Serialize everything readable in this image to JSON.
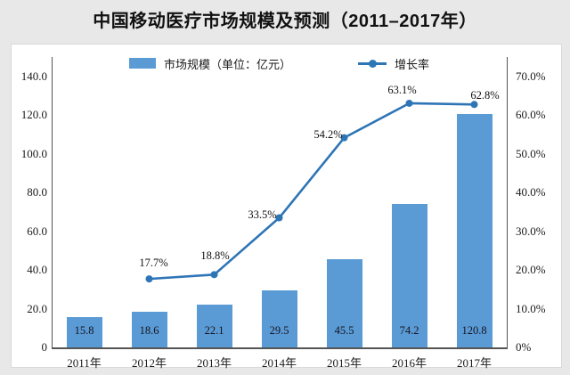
{
  "title": "中国移动医疗市场规模及预测（2011–2017年）",
  "legend": {
    "bar_label": "市场规模（单位：亿元）",
    "line_label": "增长率"
  },
  "colors": {
    "bar_fill": "#5b9bd5",
    "line_stroke": "#2e75b6",
    "marker_fill": "#2e75b6",
    "axis_line": "#555555",
    "background": "#e8e8e8",
    "panel": "#ffffff"
  },
  "chart_data": {
    "type": "combo-bar-line",
    "title": "中国移动医疗市场规模及预测（2011–2017年）",
    "categories": [
      "2011年",
      "2012年",
      "2013年",
      "2014年",
      "2015年",
      "2016年",
      "2017年"
    ],
    "series": [
      {
        "name": "市场规模（单位：亿元）",
        "type": "bar",
        "axis": "left",
        "values": [
          15.8,
          18.6,
          22.1,
          29.5,
          45.5,
          74.2,
          120.8
        ],
        "value_labels": [
          "15.8",
          "18.6",
          "22.1",
          "29.5",
          "45.5",
          "74.2",
          "120.8"
        ]
      },
      {
        "name": "增长率",
        "type": "line",
        "axis": "right",
        "values": [
          null,
          17.7,
          18.8,
          33.5,
          54.2,
          63.1,
          62.8
        ],
        "value_labels": [
          "",
          "17.7%",
          "18.8%",
          "33.5%",
          "54.2%",
          "63.1%",
          "62.8%"
        ]
      }
    ],
    "left_axis": {
      "min": 0,
      "max": 140,
      "tick_values": [
        0,
        20,
        40,
        60,
        80,
        100,
        120,
        140
      ],
      "tick_labels": [
        "0",
        "20.0",
        "40.0",
        "60.0",
        "80.0",
        "100.0",
        "120.0",
        "140.0"
      ]
    },
    "right_axis": {
      "min": 0,
      "max": 70,
      "tick_values": [
        0,
        10,
        20,
        30,
        40,
        50,
        60,
        70
      ],
      "tick_labels": [
        "0%",
        "10.0%",
        "20.0%",
        "30.0%",
        "40.0%",
        "50.0%",
        "60.0%",
        "70.0%"
      ]
    },
    "grid": false,
    "legend_position": "top-center"
  }
}
